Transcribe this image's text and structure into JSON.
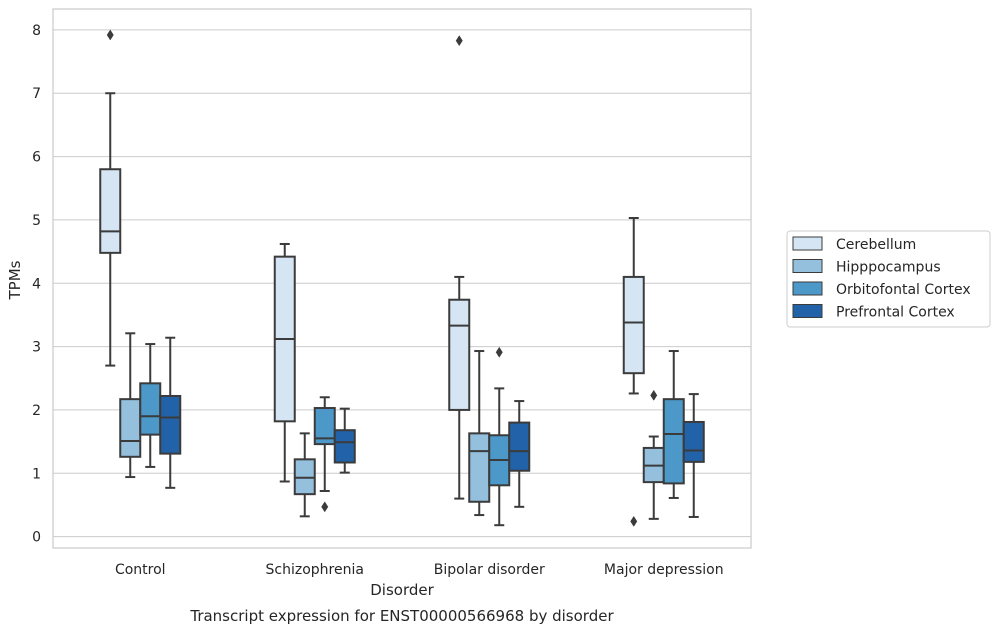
{
  "chart_data": {
    "type": "box",
    "caption": "Transcript expression for ENST00000566968 by disorder",
    "xlabel": "Disorder",
    "ylabel": "TPMs",
    "ylim": [
      -0.18,
      8.33
    ],
    "yticks": [
      "0",
      "1",
      "2",
      "3",
      "4",
      "5",
      "6",
      "7",
      "8"
    ],
    "grid": true,
    "legend_position": "right",
    "categories": [
      "Control",
      "Schizophrenia",
      "Bipolar disorder",
      "Major depression"
    ],
    "series": [
      {
        "name": "Cerebellum",
        "color": "#d6e5f4",
        "boxes": [
          {
            "whislo": 2.7,
            "q1": 4.48,
            "med": 4.82,
            "q3": 5.8,
            "whishi": 7.0,
            "fliers": [
              7.92
            ]
          },
          {
            "whislo": 0.87,
            "q1": 1.82,
            "med": 3.12,
            "q3": 4.42,
            "whishi": 4.62,
            "fliers": []
          },
          {
            "whislo": 0.6,
            "q1": 2.0,
            "med": 3.33,
            "q3": 3.74,
            "whishi": 4.1,
            "fliers": [
              7.83
            ]
          },
          {
            "whislo": 2.26,
            "q1": 2.58,
            "med": 3.38,
            "q3": 4.1,
            "whishi": 5.03,
            "fliers": [
              0.24
            ]
          }
        ]
      },
      {
        "name": "Hipppocampus",
        "color": "#94c0de",
        "boxes": [
          {
            "whislo": 0.94,
            "q1": 1.26,
            "med": 1.51,
            "q3": 2.17,
            "whishi": 3.21,
            "fliers": []
          },
          {
            "whislo": 0.32,
            "q1": 0.67,
            "med": 0.93,
            "q3": 1.22,
            "whishi": 1.63,
            "fliers": []
          },
          {
            "whislo": 0.34,
            "q1": 0.55,
            "med": 1.35,
            "q3": 1.63,
            "whishi": 2.93,
            "fliers": []
          },
          {
            "whislo": 0.28,
            "q1": 0.86,
            "med": 1.12,
            "q3": 1.4,
            "whishi": 1.58,
            "fliers": [
              2.23
            ]
          }
        ]
      },
      {
        "name": "Orbitofontal Cortex",
        "color": "#4b98c9",
        "boxes": [
          {
            "whislo": 1.1,
            "q1": 1.61,
            "med": 1.9,
            "q3": 2.42,
            "whishi": 3.04,
            "fliers": []
          },
          {
            "whislo": 0.72,
            "q1": 1.46,
            "med": 1.55,
            "q3": 2.03,
            "whishi": 2.2,
            "fliers": [
              0.47
            ]
          },
          {
            "whislo": 0.18,
            "q1": 0.81,
            "med": 1.21,
            "q3": 1.6,
            "whishi": 2.34,
            "fliers": [
              2.91
            ]
          },
          {
            "whislo": 0.61,
            "q1": 0.84,
            "med": 1.62,
            "q3": 2.17,
            "whishi": 2.93,
            "fliers": []
          }
        ]
      },
      {
        "name": "Prefrontal Cortex",
        "color": "#2262a8",
        "boxes": [
          {
            "whislo": 0.77,
            "q1": 1.31,
            "med": 1.88,
            "q3": 2.22,
            "whishi": 3.14,
            "fliers": []
          },
          {
            "whislo": 1.01,
            "q1": 1.17,
            "med": 1.49,
            "q3": 1.68,
            "whishi": 2.02,
            "fliers": []
          },
          {
            "whislo": 0.47,
            "q1": 1.04,
            "med": 1.35,
            "q3": 1.8,
            "whishi": 2.14,
            "fliers": []
          },
          {
            "whislo": 0.31,
            "q1": 1.18,
            "med": 1.36,
            "q3": 1.81,
            "whishi": 2.25,
            "fliers": []
          }
        ]
      }
    ]
  }
}
